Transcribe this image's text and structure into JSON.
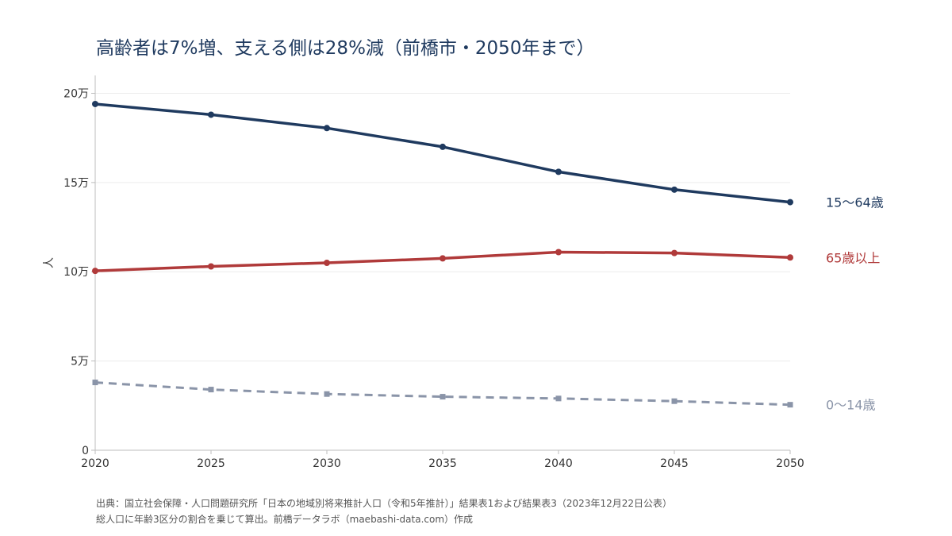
{
  "chart_data": {
    "type": "line",
    "title": "高齢者は7%増、支える側は28%減（前橋市・2050年まで）",
    "ylabel": "人",
    "xlabel": "",
    "x": [
      2020,
      2025,
      2030,
      2035,
      2040,
      2045,
      2050
    ],
    "x_tick_labels": [
      "2020",
      "2025",
      "2030",
      "2035",
      "2040",
      "2045",
      "2050"
    ],
    "xlim": [
      2020,
      2050
    ],
    "ylim": [
      0,
      210000
    ],
    "y_ticks": [
      0,
      50000,
      100000,
      150000,
      200000
    ],
    "y_tick_labels": [
      "0",
      "5万",
      "10万",
      "15万",
      "20万"
    ],
    "grid": "horizontal",
    "legend": "direct labels at right end of lines",
    "series": [
      {
        "name": "15〜64歳",
        "color": "#1f3a5f",
        "style": "solid",
        "marker": "circle",
        "values": [
          194000,
          188000,
          180500,
          170000,
          156000,
          146000,
          139000
        ]
      },
      {
        "name": "65歳以上",
        "color": "#b03a3a",
        "style": "solid",
        "marker": "circle",
        "values": [
          100500,
          103000,
          105000,
          107500,
          111000,
          110500,
          108000
        ]
      },
      {
        "name": "0〜14歳",
        "color": "#8a94a8",
        "style": "dashed",
        "marker": "square",
        "values": [
          38000,
          34000,
          31500,
          30000,
          29000,
          27500,
          25500
        ]
      }
    ]
  },
  "source": {
    "line1": "出典：国立社会保障・人口問題研究所「日本の地域別将来推計人口（令和5年推計）」結果表1および結果表3（2023年12月22日公表）",
    "line2": "総人口に年齢3区分の割合を乗じて算出。前橋データラボ（maebashi-data.com）作成"
  }
}
